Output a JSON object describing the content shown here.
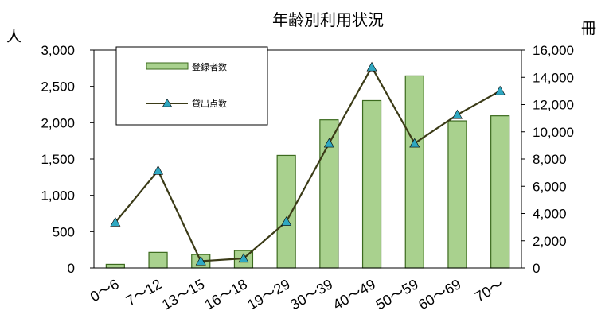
{
  "chart_data": {
    "type": "bar",
    "title": "年齢別利用状況",
    "categories": [
      "0〜6",
      "7〜12",
      "13〜15",
      "16〜18",
      "19〜29",
      "30〜39",
      "40〜49",
      "50〜59",
      "60〜69",
      "70〜"
    ],
    "series": [
      {
        "name": "登録者数",
        "type": "bar",
        "axis": "left",
        "values": [
          50,
          215,
          185,
          240,
          1550,
          2040,
          2305,
          2645,
          2025,
          2095
        ]
      },
      {
        "name": "貸出点数",
        "type": "line",
        "axis": "right",
        "values": [
          3350,
          7150,
          500,
          700,
          3400,
          9150,
          14750,
          9150,
          11250,
          13000
        ]
      }
    ],
    "yleft": {
      "unit": "人",
      "ylim": [
        0,
        3000
      ],
      "ticks": [
        "0",
        "500",
        "1,000",
        "1,500",
        "2,000",
        "2,500",
        "3,000"
      ]
    },
    "yright": {
      "unit": "冊",
      "ylim": [
        0,
        16000
      ],
      "ticks": [
        "0",
        "2,000",
        "4,000",
        "6,000",
        "8,000",
        "10,000",
        "12,000",
        "14,000",
        "16,000"
      ]
    },
    "legend_position": "top-left",
    "colors": {
      "bar_fill": "#a9d18e",
      "bar_stroke": "#3c6a1e",
      "line": "#3b3b17",
      "marker": "#2fa8c2"
    },
    "grid": false
  }
}
